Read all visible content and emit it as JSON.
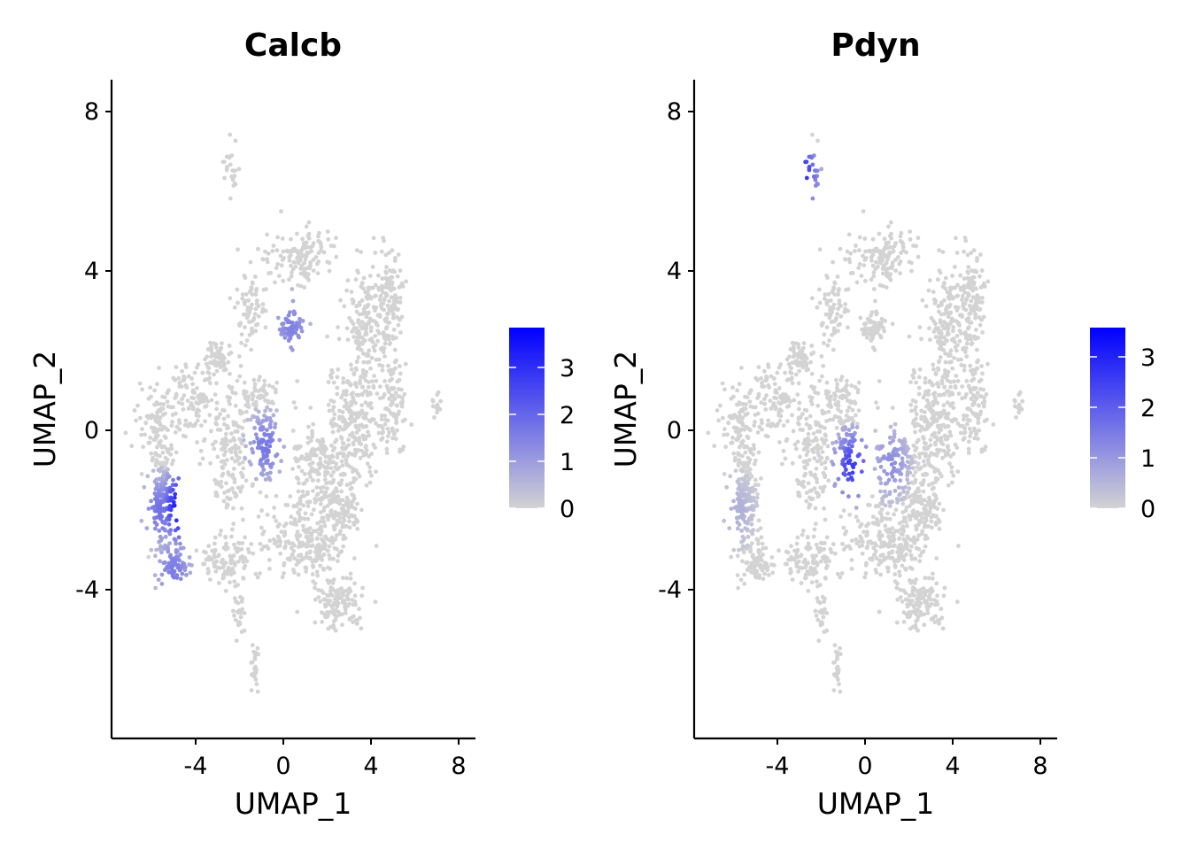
{
  "chart_data": [
    {
      "type": "scatter",
      "title": "Calcb",
      "xlabel": "UMAP_1",
      "ylabel": "UMAP_2",
      "xlim": [
        -8.2,
        8.8
      ],
      "ylim": [
        -7.7,
        8.8
      ],
      "x_ticks": [
        -4,
        0,
        4,
        8
      ],
      "y_ticks": [
        -4,
        0,
        4,
        8
      ],
      "x_tick_labels": [
        "-4",
        "0",
        "4",
        "8"
      ],
      "y_tick_labels": [
        "-4",
        "0",
        "4",
        "8"
      ],
      "legend": {
        "position": "right",
        "ticks": [
          0,
          1,
          2,
          3
        ],
        "tick_labels": [
          "0",
          "1",
          "2",
          "3"
        ],
        "max": 3.85
      },
      "color_low": "#d3d3d3",
      "color_high": "#0000ff",
      "grid": false,
      "expression_hotspots": [
        {
          "x": -5.9,
          "y": -2.0,
          "level": 1.8
        },
        {
          "x": -5.3,
          "y": -3.5,
          "level": 1.6
        },
        {
          "x": 0.2,
          "y": 2.6,
          "level": 1.5
        },
        {
          "x": -1.0,
          "y": -0.4,
          "level": 1.7
        },
        {
          "x": -4.9,
          "y": -1.9,
          "level": 3.8
        }
      ]
    },
    {
      "type": "scatter",
      "title": "Pdyn",
      "xlabel": "UMAP_1",
      "ylabel": "UMAP_2",
      "xlim": [
        -8.2,
        8.8
      ],
      "ylim": [
        -7.7,
        8.8
      ],
      "x_ticks": [
        -4,
        0,
        4,
        8
      ],
      "y_ticks": [
        -4,
        0,
        4,
        8
      ],
      "x_tick_labels": [
        "-4",
        "0",
        "4",
        "8"
      ],
      "y_tick_labels": [
        "-4",
        "0",
        "4",
        "8"
      ],
      "legend": {
        "position": "right",
        "ticks": [
          0,
          1,
          2,
          3
        ],
        "tick_labels": [
          "0",
          "1",
          "2",
          "3"
        ],
        "max": 3.6
      },
      "color_low": "#d3d3d3",
      "color_high": "#0000ff",
      "grid": false,
      "expression_hotspots": [
        {
          "x": -0.8,
          "y": -0.9,
          "level": 2.6
        },
        {
          "x": -3.3,
          "y": 6.4,
          "level": 3.2
        },
        {
          "x": 1.0,
          "y": -0.8,
          "level": 1.2
        },
        {
          "x": -6.2,
          "y": -2.0,
          "level": 0.6
        }
      ]
    }
  ]
}
